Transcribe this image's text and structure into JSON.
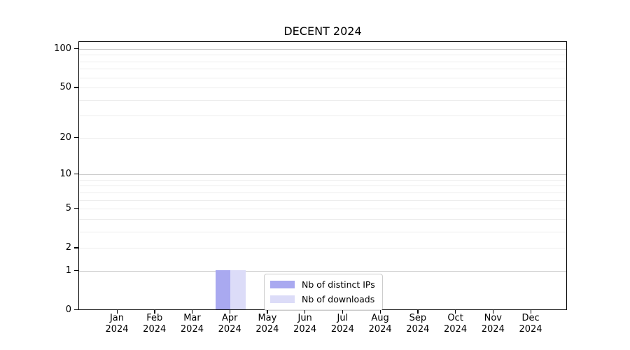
{
  "chart_data": {
    "type": "bar",
    "title": "DECENT 2024",
    "x_tick_labels": [
      {
        "month": "Jan",
        "year": "2024"
      },
      {
        "month": "Feb",
        "year": "2024"
      },
      {
        "month": "Mar",
        "year": "2024"
      },
      {
        "month": "Apr",
        "year": "2024"
      },
      {
        "month": "May",
        "year": "2024"
      },
      {
        "month": "Jun",
        "year": "2024"
      },
      {
        "month": "Jul",
        "year": "2024"
      },
      {
        "month": "Aug",
        "year": "2024"
      },
      {
        "month": "Sep",
        "year": "2024"
      },
      {
        "month": "Oct",
        "year": "2024"
      },
      {
        "month": "Nov",
        "year": "2024"
      },
      {
        "month": "Dec",
        "year": "2024"
      }
    ],
    "y_tick_values": [
      100,
      50,
      20,
      10,
      5,
      2,
      1,
      0
    ],
    "y_scale": "log10(1+y)",
    "ylim": [
      0,
      115
    ],
    "grid": {
      "orientation": "horizontal",
      "major_values": [
        1,
        10,
        100
      ],
      "minor_values": [
        2,
        3,
        4,
        5,
        6,
        7,
        8,
        9,
        20,
        30,
        40,
        50,
        60,
        70,
        80,
        90
      ]
    },
    "series": [
      {
        "name": "Nb of distinct IPs",
        "color": "#a9a9f0",
        "values": [
          0,
          0,
          0,
          1,
          0,
          0,
          0,
          0,
          0,
          0,
          0,
          0
        ]
      },
      {
        "name": "Nb of downloads",
        "color": "#dcdcf8",
        "values": [
          0,
          0,
          0,
          1,
          0,
          0,
          0,
          0,
          0,
          0,
          0,
          0
        ]
      }
    ],
    "legend": {
      "position": "inside lower-center",
      "entries": [
        "Nb of distinct IPs",
        "Nb of downloads"
      ]
    }
  },
  "colors": {
    "axis": "#000000",
    "grid_major": "#c9c9c9",
    "grid_minor": "#ededed",
    "legend_border": "#cccccc",
    "background": "#ffffff"
  }
}
